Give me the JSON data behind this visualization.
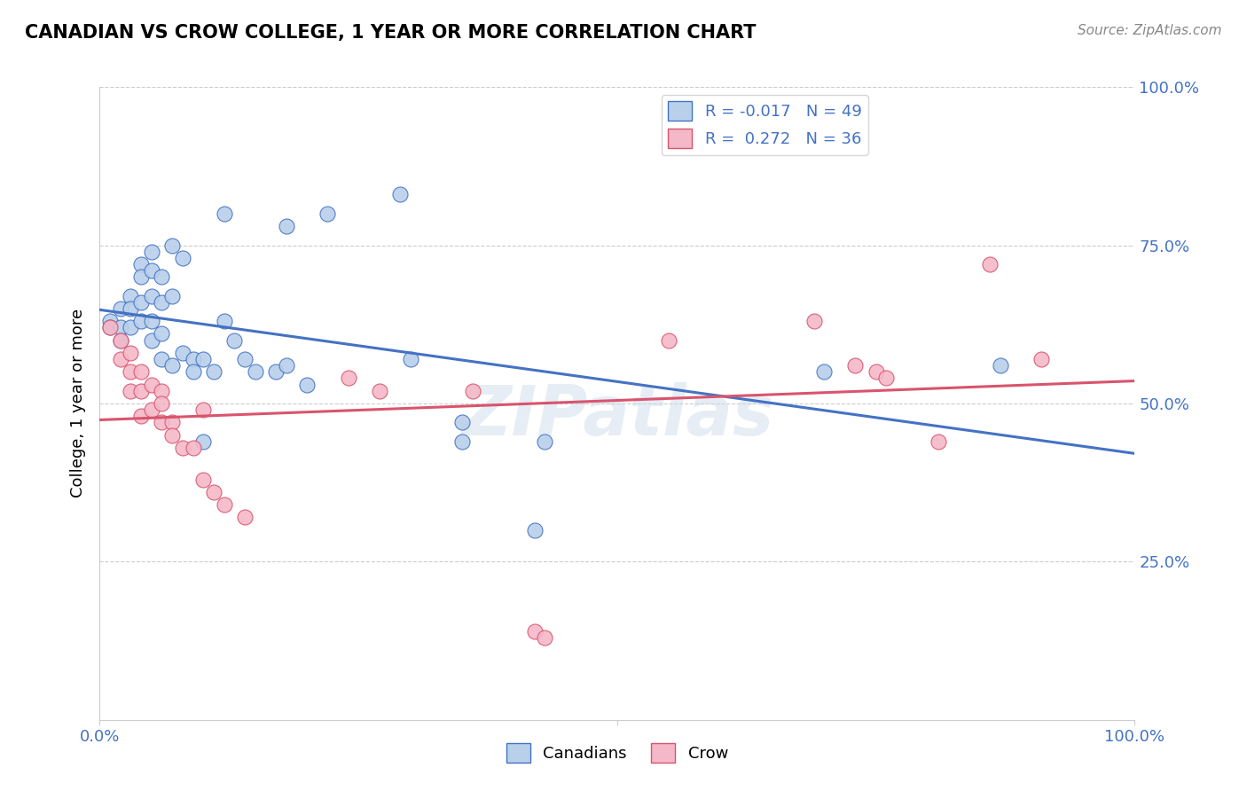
{
  "title": "CANADIAN VS CROW COLLEGE, 1 YEAR OR MORE CORRELATION CHART",
  "source": "Source: ZipAtlas.com",
  "ylabel": "College, 1 year or more",
  "xlim": [
    0.0,
    1.0
  ],
  "ylim": [
    0.0,
    1.0
  ],
  "canadian_R": -0.017,
  "canadian_N": 49,
  "crow_R": 0.272,
  "crow_N": 36,
  "canadian_color": "#b8d0ea",
  "crow_color": "#f4b8c8",
  "line_canadian_color": "#4472c4",
  "line_crow_color": "#d9546e",
  "watermark": "ZIPatlas",
  "canadian_points": [
    [
      0.01,
      0.63
    ],
    [
      0.01,
      0.62
    ],
    [
      0.02,
      0.65
    ],
    [
      0.02,
      0.62
    ],
    [
      0.02,
      0.6
    ],
    [
      0.03,
      0.67
    ],
    [
      0.03,
      0.65
    ],
    [
      0.03,
      0.62
    ],
    [
      0.04,
      0.72
    ],
    [
      0.04,
      0.7
    ],
    [
      0.04,
      0.66
    ],
    [
      0.04,
      0.63
    ],
    [
      0.05,
      0.74
    ],
    [
      0.05,
      0.71
    ],
    [
      0.05,
      0.67
    ],
    [
      0.05,
      0.63
    ],
    [
      0.05,
      0.6
    ],
    [
      0.06,
      0.7
    ],
    [
      0.06,
      0.66
    ],
    [
      0.06,
      0.61
    ],
    [
      0.06,
      0.57
    ],
    [
      0.07,
      0.75
    ],
    [
      0.07,
      0.67
    ],
    [
      0.07,
      0.56
    ],
    [
      0.08,
      0.73
    ],
    [
      0.08,
      0.58
    ],
    [
      0.09,
      0.57
    ],
    [
      0.09,
      0.55
    ],
    [
      0.1,
      0.57
    ],
    [
      0.1,
      0.44
    ],
    [
      0.11,
      0.55
    ],
    [
      0.12,
      0.8
    ],
    [
      0.12,
      0.63
    ],
    [
      0.13,
      0.6
    ],
    [
      0.14,
      0.57
    ],
    [
      0.15,
      0.55
    ],
    [
      0.17,
      0.55
    ],
    [
      0.18,
      0.78
    ],
    [
      0.18,
      0.56
    ],
    [
      0.2,
      0.53
    ],
    [
      0.22,
      0.8
    ],
    [
      0.29,
      0.83
    ],
    [
      0.3,
      0.57
    ],
    [
      0.35,
      0.47
    ],
    [
      0.35,
      0.44
    ],
    [
      0.42,
      0.3
    ],
    [
      0.43,
      0.44
    ],
    [
      0.7,
      0.55
    ],
    [
      0.87,
      0.56
    ]
  ],
  "crow_points": [
    [
      0.01,
      0.62
    ],
    [
      0.02,
      0.6
    ],
    [
      0.02,
      0.57
    ],
    [
      0.03,
      0.58
    ],
    [
      0.03,
      0.55
    ],
    [
      0.03,
      0.52
    ],
    [
      0.04,
      0.55
    ],
    [
      0.04,
      0.52
    ],
    [
      0.04,
      0.48
    ],
    [
      0.05,
      0.53
    ],
    [
      0.05,
      0.49
    ],
    [
      0.06,
      0.52
    ],
    [
      0.06,
      0.5
    ],
    [
      0.06,
      0.47
    ],
    [
      0.07,
      0.47
    ],
    [
      0.07,
      0.45
    ],
    [
      0.08,
      0.43
    ],
    [
      0.09,
      0.43
    ],
    [
      0.1,
      0.49
    ],
    [
      0.1,
      0.38
    ],
    [
      0.11,
      0.36
    ],
    [
      0.12,
      0.34
    ],
    [
      0.14,
      0.32
    ],
    [
      0.24,
      0.54
    ],
    [
      0.27,
      0.52
    ],
    [
      0.36,
      0.52
    ],
    [
      0.42,
      0.14
    ],
    [
      0.43,
      0.13
    ],
    [
      0.55,
      0.6
    ],
    [
      0.69,
      0.63
    ],
    [
      0.73,
      0.56
    ],
    [
      0.75,
      0.55
    ],
    [
      0.76,
      0.54
    ],
    [
      0.81,
      0.44
    ],
    [
      0.86,
      0.72
    ],
    [
      0.91,
      0.57
    ]
  ]
}
